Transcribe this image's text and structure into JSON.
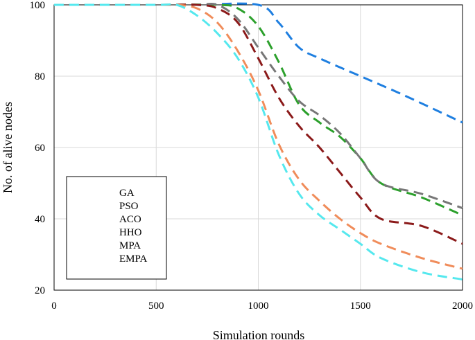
{
  "chart_data": {
    "type": "line",
    "title": "",
    "xlabel": "Simulation rounds",
    "ylabel": "No. of alive nodes",
    "xlim": [
      0,
      2000
    ],
    "ylim": [
      20,
      100
    ],
    "xticks": [
      0,
      500,
      1000,
      1500,
      2000
    ],
    "yticks": [
      20,
      40,
      60,
      80,
      100
    ],
    "xtick_labels": [
      "0",
      "500",
      "1000",
      "1500",
      "2000"
    ],
    "ytick_labels": [
      "20",
      "40",
      "60",
      "80",
      "100"
    ],
    "grid": true,
    "legend_position": "bottom-left",
    "series": [
      {
        "name": "GA",
        "color": "#1f7fe0",
        "x": [
          0,
          500,
          700,
          1000,
          1100,
          1200,
          1300,
          1500,
          1700,
          2000
        ],
        "y": [
          100,
          100,
          100,
          100,
          95,
          88,
          85,
          80,
          75,
          67
        ]
      },
      {
        "name": "PSO",
        "color": "#2ca02c",
        "x": [
          0,
          500,
          800,
          900,
          1000,
          1100,
          1200,
          1300,
          1400,
          1500,
          1600,
          1800,
          2000
        ],
        "y": [
          100,
          100,
          100,
          99,
          94,
          84,
          72,
          67,
          63,
          57,
          50,
          46,
          41
        ]
      },
      {
        "name": "ACO",
        "color": "#777777",
        "x": [
          0,
          500,
          700,
          800,
          900,
          1000,
          1100,
          1200,
          1300,
          1400,
          1500,
          1600,
          1800,
          2000
        ],
        "y": [
          100,
          100,
          100,
          100,
          96,
          88,
          80,
          73,
          69,
          64,
          57,
          50,
          47,
          43
        ]
      },
      {
        "name": "HHO",
        "color": "#8b1a1a",
        "x": [
          0,
          500,
          700,
          800,
          900,
          1000,
          1100,
          1200,
          1300,
          1400,
          1500,
          1600,
          1800,
          2000
        ],
        "y": [
          100,
          100,
          100,
          99,
          95,
          85,
          74,
          66,
          60,
          53,
          46,
          40,
          38,
          33
        ]
      },
      {
        "name": "MPA",
        "color": "#f08c5a",
        "x": [
          0,
          500,
          600,
          700,
          800,
          900,
          1000,
          1100,
          1200,
          1300,
          1400,
          1500,
          1600,
          1800,
          2000
        ],
        "y": [
          100,
          100,
          100,
          99,
          95,
          87,
          76,
          61,
          51,
          45,
          40,
          36,
          33,
          29,
          26
        ]
      },
      {
        "name": "EMPA",
        "color": "#55e8ee",
        "x": [
          0,
          500,
          600,
          700,
          800,
          900,
          1000,
          1100,
          1200,
          1300,
          1400,
          1500,
          1600,
          1800,
          2000
        ],
        "y": [
          100,
          100,
          100,
          97,
          92,
          85,
          74,
          58,
          47,
          41,
          37,
          33,
          29,
          25,
          23
        ]
      }
    ]
  }
}
